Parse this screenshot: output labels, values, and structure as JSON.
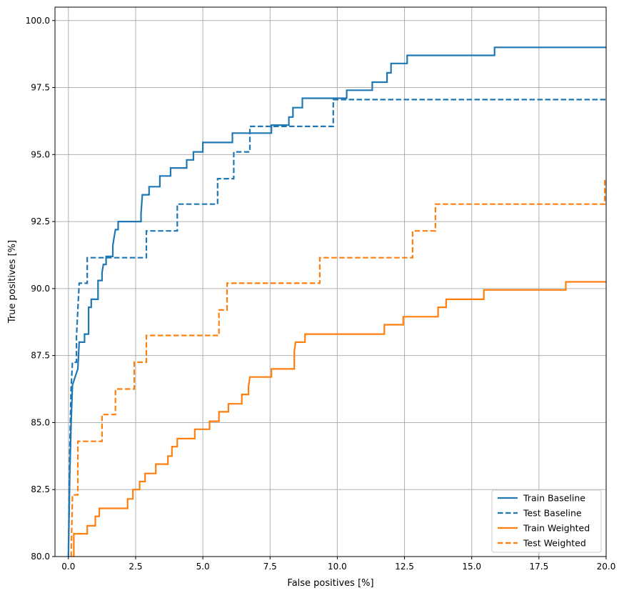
{
  "chart_data": {
    "type": "line",
    "title": "",
    "xlabel": "False positives [%]",
    "ylabel": "True positives [%]",
    "xlim": [
      -0.5,
      20
    ],
    "ylim": [
      80,
      100.5
    ],
    "xticks": [
      "0.0",
      "2.5",
      "5.0",
      "7.5",
      "10.0",
      "12.5",
      "15.0",
      "17.5",
      "20.0"
    ],
    "yticks": [
      "80.0",
      "82.5",
      "85.0",
      "87.5",
      "90.0",
      "92.5",
      "95.0",
      "97.5",
      "100.0"
    ],
    "grid": true,
    "legend_position": "bottom-right",
    "series": [
      {
        "name": "Train Baseline",
        "color": "#1f77b4",
        "style": "solid",
        "points": [
          [
            0,
            80
          ],
          [
            0.05,
            83
          ],
          [
            0.1,
            85
          ],
          [
            0.15,
            86.4
          ],
          [
            0.25,
            86.7
          ],
          [
            0.35,
            87.0
          ],
          [
            0.4,
            88.0
          ],
          [
            0.6,
            88.0
          ],
          [
            0.6,
            88.3
          ],
          [
            0.75,
            88.3
          ],
          [
            0.75,
            89.3
          ],
          [
            0.85,
            89.3
          ],
          [
            0.85,
            89.6
          ],
          [
            1.1,
            89.6
          ],
          [
            1.1,
            90.3
          ],
          [
            1.25,
            90.3
          ],
          [
            1.25,
            90.6
          ],
          [
            1.3,
            90.9
          ],
          [
            1.4,
            90.9
          ],
          [
            1.4,
            91.2
          ],
          [
            1.65,
            91.2
          ],
          [
            1.65,
            91.6
          ],
          [
            1.7,
            91.9
          ],
          [
            1.75,
            92.2
          ],
          [
            1.85,
            92.2
          ],
          [
            1.85,
            92.5
          ],
          [
            2.7,
            92.5
          ],
          [
            2.7,
            92.8
          ],
          [
            2.75,
            93.5
          ],
          [
            3.0,
            93.5
          ],
          [
            3.0,
            93.8
          ],
          [
            3.4,
            93.8
          ],
          [
            3.4,
            94.2
          ],
          [
            3.8,
            94.2
          ],
          [
            3.8,
            94.5
          ],
          [
            4.4,
            94.5
          ],
          [
            4.4,
            94.8
          ],
          [
            4.65,
            94.8
          ],
          [
            4.65,
            95.1
          ],
          [
            5.0,
            95.1
          ],
          [
            5.0,
            95.45
          ],
          [
            6.1,
            95.45
          ],
          [
            6.1,
            95.8
          ],
          [
            7.55,
            95.8
          ],
          [
            7.55,
            96.1
          ],
          [
            8.2,
            96.1
          ],
          [
            8.2,
            96.4
          ],
          [
            8.35,
            96.4
          ],
          [
            8.35,
            96.75
          ],
          [
            8.7,
            96.75
          ],
          [
            8.7,
            97.1
          ],
          [
            10.35,
            97.1
          ],
          [
            10.35,
            97.4
          ],
          [
            11.3,
            97.4
          ],
          [
            11.3,
            97.7
          ],
          [
            11.85,
            97.7
          ],
          [
            11.85,
            98.05
          ],
          [
            12.0,
            98.05
          ],
          [
            12.0,
            98.4
          ],
          [
            12.6,
            98.4
          ],
          [
            12.6,
            98.7
          ],
          [
            15.85,
            98.7
          ],
          [
            15.85,
            99.0
          ],
          [
            20,
            99.0
          ]
        ]
      },
      {
        "name": "Test Baseline",
        "color": "#1f77b4",
        "style": "dashed",
        "points": [
          [
            0,
            80
          ],
          [
            0.05,
            84
          ],
          [
            0.1,
            86.3
          ],
          [
            0.15,
            87.25
          ],
          [
            0.3,
            87.25
          ],
          [
            0.3,
            88.2
          ],
          [
            0.35,
            89.2
          ],
          [
            0.4,
            90.2
          ],
          [
            0.7,
            90.2
          ],
          [
            0.7,
            91.15
          ],
          [
            2.9,
            91.15
          ],
          [
            2.9,
            92.15
          ],
          [
            4.05,
            92.15
          ],
          [
            4.05,
            93.15
          ],
          [
            5.55,
            93.15
          ],
          [
            5.55,
            94.1
          ],
          [
            6.15,
            94.1
          ],
          [
            6.15,
            95.1
          ],
          [
            6.75,
            95.1
          ],
          [
            6.75,
            96.05
          ],
          [
            9.85,
            96.05
          ],
          [
            9.85,
            97.05
          ],
          [
            20,
            97.05
          ]
        ]
      },
      {
        "name": "Train Weighted",
        "color": "#ff7f0e",
        "style": "solid",
        "points": [
          [
            0.2,
            80
          ],
          [
            0.2,
            80.85
          ],
          [
            0.7,
            80.85
          ],
          [
            0.7,
            81.15
          ],
          [
            1.0,
            81.15
          ],
          [
            1.0,
            81.5
          ],
          [
            1.15,
            81.5
          ],
          [
            1.15,
            81.8
          ],
          [
            2.2,
            81.8
          ],
          [
            2.2,
            82.15
          ],
          [
            2.4,
            82.15
          ],
          [
            2.4,
            82.5
          ],
          [
            2.65,
            82.5
          ],
          [
            2.65,
            82.8
          ],
          [
            2.85,
            82.8
          ],
          [
            2.85,
            83.1
          ],
          [
            3.25,
            83.1
          ],
          [
            3.25,
            83.45
          ],
          [
            3.7,
            83.45
          ],
          [
            3.7,
            83.75
          ],
          [
            3.85,
            83.75
          ],
          [
            3.85,
            84.1
          ],
          [
            4.05,
            84.1
          ],
          [
            4.05,
            84.4
          ],
          [
            4.7,
            84.4
          ],
          [
            4.7,
            84.75
          ],
          [
            5.25,
            84.75
          ],
          [
            5.25,
            85.05
          ],
          [
            5.6,
            85.05
          ],
          [
            5.6,
            85.4
          ],
          [
            5.95,
            85.4
          ],
          [
            5.95,
            85.7
          ],
          [
            6.45,
            85.7
          ],
          [
            6.45,
            86.05
          ],
          [
            6.7,
            86.05
          ],
          [
            6.7,
            86.35
          ],
          [
            6.75,
            86.7
          ],
          [
            7.55,
            86.7
          ],
          [
            7.55,
            87.0
          ],
          [
            8.4,
            87.0
          ],
          [
            8.4,
            87.65
          ],
          [
            8.45,
            88.0
          ],
          [
            8.8,
            88.0
          ],
          [
            8.8,
            88.3
          ],
          [
            11.75,
            88.3
          ],
          [
            11.75,
            88.65
          ],
          [
            12.45,
            88.65
          ],
          [
            12.45,
            88.95
          ],
          [
            13.75,
            88.95
          ],
          [
            13.75,
            89.3
          ],
          [
            14.05,
            89.3
          ],
          [
            14.05,
            89.6
          ],
          [
            15.45,
            89.6
          ],
          [
            15.45,
            89.95
          ],
          [
            18.5,
            89.95
          ],
          [
            18.5,
            90.25
          ],
          [
            20,
            90.25
          ]
        ]
      },
      {
        "name": "Test Weighted",
        "color": "#ff7f0e",
        "style": "dashed",
        "points": [
          [
            0.1,
            80
          ],
          [
            0.15,
            82.3
          ],
          [
            0.35,
            82.3
          ],
          [
            0.35,
            84.3
          ],
          [
            1.25,
            84.3
          ],
          [
            1.25,
            85.3
          ],
          [
            1.75,
            85.3
          ],
          [
            1.75,
            86.25
          ],
          [
            2.45,
            86.25
          ],
          [
            2.45,
            87.25
          ],
          [
            2.9,
            87.25
          ],
          [
            2.9,
            88.25
          ],
          [
            5.6,
            88.25
          ],
          [
            5.6,
            89.2
          ],
          [
            5.9,
            89.2
          ],
          [
            5.9,
            90.2
          ],
          [
            9.35,
            90.2
          ],
          [
            9.35,
            91.15
          ],
          [
            12.8,
            91.15
          ],
          [
            12.8,
            92.15
          ],
          [
            13.65,
            92.15
          ],
          [
            13.65,
            93.15
          ],
          [
            19.95,
            93.15
          ],
          [
            19.95,
            94.1
          ],
          [
            20,
            94.1
          ]
        ]
      }
    ]
  }
}
